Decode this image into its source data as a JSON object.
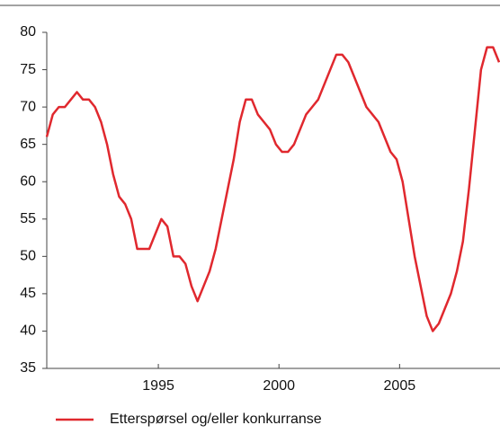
{
  "chart_data": {
    "type": "line",
    "x": [
      1990.375,
      1990.625,
      1990.875,
      1991.125,
      1991.375,
      1991.625,
      1991.875,
      1992.125,
      1992.375,
      1992.625,
      1992.875,
      1993.125,
      1993.375,
      1993.625,
      1993.875,
      1994.125,
      1994.375,
      1994.625,
      1994.875,
      1995.125,
      1995.375,
      1995.625,
      1995.875,
      1996.125,
      1996.375,
      1996.625,
      1996.875,
      1997.125,
      1997.375,
      1997.625,
      1997.875,
      1998.125,
      1998.375,
      1998.625,
      1998.875,
      1999.125,
      1999.375,
      1999.625,
      1999.875,
      2000.125,
      2000.375,
      2000.625,
      2000.875,
      2001.125,
      2001.375,
      2001.625,
      2001.875,
      2002.125,
      2002.375,
      2002.625,
      2002.875,
      2003.125,
      2003.375,
      2003.625,
      2003.875,
      2004.125,
      2004.375,
      2004.625,
      2004.875,
      2005.125,
      2005.375,
      2005.625,
      2005.875,
      2006.125,
      2006.375,
      2006.625,
      2006.875,
      2007.125,
      2007.375,
      2007.625,
      2007.875,
      2008.125,
      2008.375,
      2008.625,
      2008.875,
      2009.125
    ],
    "series": [
      {
        "name": "Etterspørsel og/eller konkurranse",
        "color": "#e0282e",
        "values": [
          66,
          69,
          70,
          70,
          71,
          72,
          71,
          71,
          70,
          68,
          65,
          61,
          58,
          57,
          55,
          51,
          51,
          51,
          53,
          55,
          54,
          50,
          50,
          49,
          46,
          44,
          46,
          48,
          51,
          55,
          59,
          63,
          68,
          71,
          71,
          69,
          68,
          67,
          65,
          64,
          64,
          65,
          67,
          69,
          70,
          71,
          73,
          75,
          77,
          77,
          76,
          74,
          72,
          70,
          69,
          68,
          66,
          64,
          63,
          60,
          55,
          50,
          46,
          42,
          40,
          41,
          43,
          45,
          48,
          52,
          59,
          67,
          75,
          78,
          78,
          76
        ]
      }
    ],
    "xlim": [
      1990.375,
      2009.125
    ],
    "xticks": [
      1995,
      2000,
      2005
    ],
    "ylim": [
      35,
      80
    ],
    "yticks": [
      35,
      40,
      45,
      50,
      55,
      60,
      65,
      70,
      75,
      80
    ],
    "grid": false
  }
}
